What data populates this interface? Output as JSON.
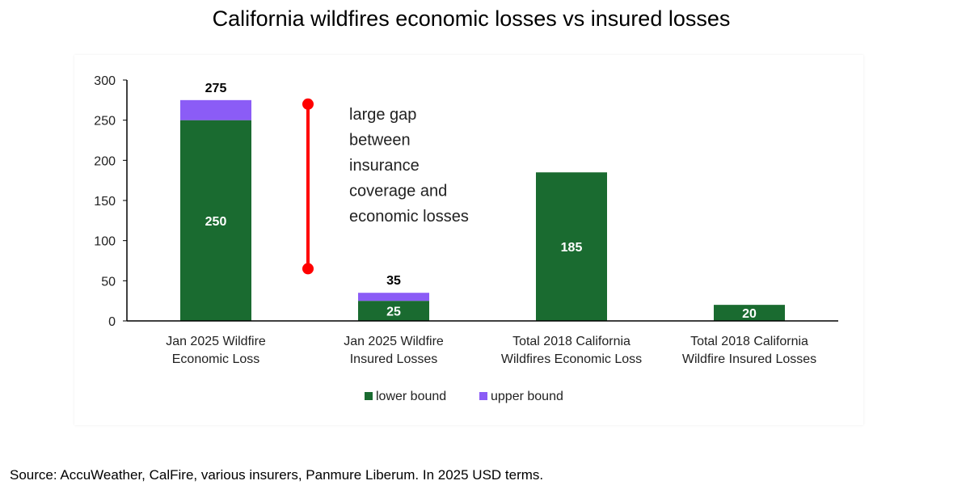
{
  "title": "California wildfires economic losses vs insured losses",
  "source": "Source: AccuWeather, CalFire, various insurers, Panmure Liberum. In 2025 USD terms.",
  "chart_data": {
    "type": "bar",
    "stacked": true,
    "categories": [
      [
        "Jan 2025 Wildfire",
        "Economic Loss"
      ],
      [
        "Jan 2025 Wildfire",
        "Insured Losses"
      ],
      [
        "Total 2018 California",
        "Wildfires Economic Loss"
      ],
      [
        "Total 2018 California",
        "Wildfire Insured Losses"
      ]
    ],
    "series": [
      {
        "name": "lower bound",
        "color": "#1a6b30",
        "values": [
          250,
          25,
          185,
          20
        ]
      },
      {
        "name": "upper bound",
        "color": "#8b5cf6",
        "values": [
          25,
          10,
          0,
          0
        ]
      }
    ],
    "inner_labels": [
      "250",
      "25",
      "185",
      "20"
    ],
    "total_labels": [
      "275",
      "35",
      "",
      ""
    ],
    "ylim": [
      0,
      300
    ],
    "yticks": [
      0,
      50,
      100,
      150,
      200,
      250,
      300
    ],
    "grid": false,
    "legend_position": "bottom",
    "annotation": {
      "text_lines": [
        "large gap",
        "between",
        "insurance",
        "coverage and",
        "economic losses"
      ],
      "range": [
        65,
        270
      ],
      "color": "#ff0000"
    }
  }
}
